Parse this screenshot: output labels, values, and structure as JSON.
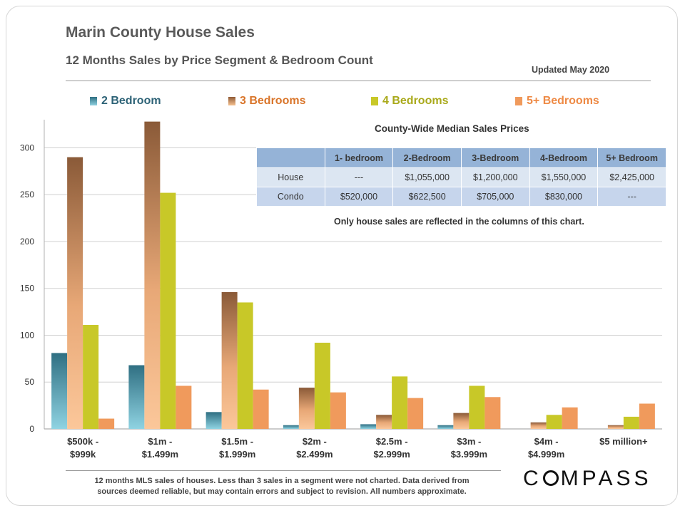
{
  "header": {
    "title": "Marin County House Sales",
    "subtitle": "12 Months Sales by Price Segment & Bedroom Count",
    "updated": "Updated May 2020"
  },
  "colors": {
    "2 Bedroom": "#4a8fa3",
    "3 Bedrooms": "#d98a3a",
    "4 Bedrooms": "#c8c828",
    "5+ Bedrooms": "#f09a5c"
  },
  "chart_data": {
    "type": "bar",
    "categories": [
      [
        "$500k -",
        "$999k"
      ],
      [
        "$1m -",
        "$1.499m"
      ],
      [
        "$1.5m -",
        "$1.999m"
      ],
      [
        "$2m -",
        "$2.499m"
      ],
      [
        "$2.5m -",
        "$2.999m"
      ],
      [
        "$3m -",
        "$3.999m"
      ],
      [
        "$4m -",
        "$4.999m"
      ],
      [
        "$5 million+"
      ]
    ],
    "series": [
      {
        "name": "2 Bedroom",
        "values": [
          81,
          68,
          18,
          4,
          5,
          4,
          null,
          null
        ]
      },
      {
        "name": "3 Bedrooms",
        "values": [
          290,
          328,
          146,
          44,
          15,
          17,
          7,
          4
        ]
      },
      {
        "name": "4 Bedrooms",
        "values": [
          111,
          252,
          135,
          92,
          56,
          46,
          15,
          13
        ]
      },
      {
        "name": "5+ Bedrooms",
        "values": [
          11,
          46,
          42,
          39,
          33,
          34,
          23,
          27
        ]
      }
    ],
    "yticks": [
      0,
      50,
      100,
      150,
      200,
      250,
      300
    ],
    "ylim": [
      0,
      330
    ],
    "grid": true,
    "legend_position": "top"
  },
  "medians": {
    "title": "County-Wide  Median Sales Prices",
    "headers": [
      "",
      "1- bedroom",
      "2-Bedroom",
      "3-Bedroom",
      "4-Bedroom",
      "5+ Bedroom"
    ],
    "rows": [
      [
        "House",
        "---",
        "$1,055,000",
        "$1,200,000",
        "$1,550,000",
        "$2,425,000"
      ],
      [
        "Condo",
        "$520,000",
        "$622,500",
        "$705,000",
        "$830,000",
        "---"
      ]
    ],
    "note": "Only house sales are reflected in the columns of this chart."
  },
  "footnote": {
    "line1": "12 months MLS sales of houses. Less than 3 sales in a segment were not charted. Data derived from",
    "line2": "sources deemed reliable, but may contain errors and subject to revision. All numbers approximate."
  },
  "logo": "COMPASS"
}
